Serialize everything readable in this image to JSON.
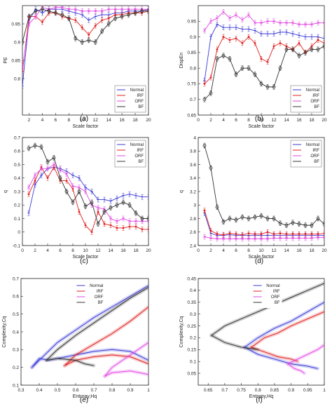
{
  "figure": {
    "panel_labels": [
      "(a)",
      "(b)",
      "(c)",
      "(d)",
      "(e)",
      "(f)"
    ]
  },
  "colors": {
    "Normal": "#3b3bd6",
    "IRF": "#e02020",
    "ORF": "#e24ae2",
    "BF": "#333333"
  },
  "chart_data": [
    {
      "panel": "(a)",
      "type": "line",
      "xlabel": "Scale factor",
      "ylabel": "PE",
      "xlim": [
        1,
        20
      ],
      "ylim": [
        0.7,
        1.0
      ],
      "xticks": [
        2,
        4,
        6,
        8,
        10,
        12,
        14,
        16,
        18,
        20
      ],
      "yticks": [
        0.8,
        0.85,
        0.9,
        0.95
      ],
      "legend": {
        "position": "bottom-right",
        "entries": [
          "Normal",
          "IRF",
          "ORF",
          "BF"
        ]
      },
      "x": [
        1,
        2,
        3,
        4,
        5,
        6,
        7,
        8,
        9,
        10,
        11,
        12,
        13,
        14,
        15,
        16,
        17,
        18,
        19,
        20
      ],
      "series": [
        {
          "name": "Normal",
          "values": [
            0.78,
            0.96,
            0.99,
            0.98,
            0.99,
            0.99,
            0.99,
            0.985,
            0.98,
            0.975,
            0.96,
            0.97,
            0.975,
            0.975,
            0.98,
            0.98,
            0.985,
            0.985,
            0.985,
            0.99
          ]
        },
        {
          "name": "IRF",
          "values": [
            0.82,
            0.97,
            0.97,
            0.955,
            0.98,
            0.98,
            0.97,
            0.965,
            0.96,
            0.94,
            0.92,
            0.945,
            0.96,
            0.965,
            0.975,
            0.975,
            0.98,
            0.98,
            0.98,
            0.985
          ]
        },
        {
          "name": "ORF",
          "values": [
            0.83,
            0.95,
            0.97,
            0.995,
            0.99,
            0.995,
            0.995,
            0.99,
            0.99,
            0.985,
            0.985,
            0.985,
            0.985,
            0.99,
            0.99,
            0.99,
            0.99,
            0.99,
            0.99,
            0.99
          ]
        },
        {
          "name": "BF",
          "values": [
            0.9,
            0.97,
            0.985,
            0.99,
            0.985,
            0.98,
            0.975,
            0.965,
            0.91,
            0.9,
            0.905,
            0.9,
            0.93,
            0.95,
            0.965,
            0.97,
            0.975,
            0.98,
            0.985,
            0.985
          ]
        }
      ]
    },
    {
      "panel": "(b)",
      "type": "line",
      "xlabel": "Scale factor",
      "ylabel": "DispEn",
      "xlim": [
        0,
        20
      ],
      "ylim": [
        0.65,
        1.0
      ],
      "xticks": [
        0,
        2,
        4,
        6,
        8,
        10,
        12,
        14,
        16,
        18,
        20
      ],
      "yticks": [
        0.65,
        0.7,
        0.75,
        0.8,
        0.85,
        0.9,
        0.95
      ],
      "legend": {
        "position": "bottom-right",
        "entries": [
          "Normal",
          "IRF",
          "ORF",
          "BF"
        ]
      },
      "x": [
        1,
        2,
        3,
        4,
        5,
        6,
        7,
        8,
        9,
        10,
        11,
        12,
        13,
        14,
        15,
        16,
        17,
        18,
        19,
        20
      ],
      "series": [
        {
          "name": "Normal",
          "values": [
            0.76,
            0.9,
            0.94,
            0.93,
            0.93,
            0.93,
            0.925,
            0.925,
            0.92,
            0.91,
            0.91,
            0.91,
            0.915,
            0.915,
            0.91,
            0.905,
            0.9,
            0.9,
            0.9,
            0.895
          ]
        },
        {
          "name": "IRF",
          "values": [
            0.75,
            0.77,
            0.86,
            0.9,
            0.89,
            0.895,
            0.88,
            0.9,
            0.88,
            0.83,
            0.82,
            0.87,
            0.88,
            0.87,
            0.86,
            0.88,
            0.85,
            0.87,
            0.89,
            0.88
          ]
        },
        {
          "name": "ORF",
          "values": [
            0.92,
            0.95,
            0.96,
            0.98,
            0.96,
            0.97,
            0.955,
            0.97,
            0.945,
            0.945,
            0.95,
            0.95,
            0.945,
            0.945,
            0.945,
            0.94,
            0.94,
            0.94,
            0.945,
            0.945
          ]
        },
        {
          "name": "BF",
          "values": [
            0.7,
            0.72,
            0.83,
            0.84,
            0.83,
            0.78,
            0.8,
            0.8,
            0.78,
            0.75,
            0.74,
            0.74,
            0.8,
            0.86,
            0.86,
            0.84,
            0.85,
            0.86,
            0.86,
            0.87
          ]
        }
      ]
    },
    {
      "panel": "(c)",
      "type": "line",
      "xlabel": "Scale factor",
      "ylabel": "q",
      "xlim": [
        0,
        20
      ],
      "ylim": [
        -0.1,
        0.7
      ],
      "xticks": [
        0,
        2,
        4,
        6,
        8,
        10,
        12,
        14,
        16,
        18,
        20
      ],
      "yticks": [
        -0.1,
        0,
        0.1,
        0.2,
        0.3,
        0.4,
        0.5,
        0.6,
        0.7
      ],
      "legend": {
        "position": "top-right",
        "entries": [
          "Normal",
          "IRF",
          "ORF",
          "BF"
        ]
      },
      "x": [
        1,
        2,
        3,
        4,
        5,
        6,
        7,
        8,
        9,
        10,
        11,
        12,
        13,
        14,
        15,
        16,
        17,
        18,
        19,
        20
      ],
      "series": [
        {
          "name": "Normal",
          "values": [
            0.14,
            0.35,
            0.42,
            0.47,
            0.48,
            0.47,
            0.45,
            0.42,
            0.4,
            0.33,
            0.3,
            0.24,
            0.24,
            0.23,
            0.25,
            0.27,
            0.28,
            0.27,
            0.26,
            0.26
          ]
        },
        {
          "name": "IRF",
          "values": [
            0.28,
            0.38,
            0.48,
            0.4,
            0.48,
            0.38,
            0.38,
            0.32,
            0.15,
            0.05,
            0.0,
            0.15,
            0.06,
            0.05,
            0.03,
            0.03,
            0.04,
            0.04,
            0.02,
            0.02
          ]
        },
        {
          "name": "ORF",
          "values": [
            0.33,
            0.42,
            0.47,
            0.47,
            0.5,
            0.46,
            0.43,
            0.34,
            0.33,
            0.3,
            0.2,
            0.18,
            0.17,
            0.1,
            0.08,
            0.1,
            0.08,
            0.08,
            0.08,
            0.08
          ]
        },
        {
          "name": "BF",
          "values": [
            0.62,
            0.64,
            0.63,
            0.52,
            0.55,
            0.4,
            0.3,
            0.22,
            0.3,
            0.19,
            0.22,
            0.06,
            0.15,
            0.18,
            0.2,
            0.22,
            0.2,
            0.14,
            0.1,
            0.1
          ]
        }
      ]
    },
    {
      "panel": "(d)",
      "type": "line",
      "xlabel": "Scale factor",
      "ylabel": "q",
      "xlim": [
        0,
        20
      ],
      "ylim": [
        2.4,
        4.0
      ],
      "xticks": [
        0,
        2,
        4,
        6,
        8,
        10,
        12,
        14,
        16,
        18,
        20
      ],
      "yticks": [
        2.4,
        2.6,
        2.8,
        3.0,
        3.2,
        3.4,
        3.6,
        3.8,
        4.0
      ],
      "legend": {
        "position": "top-right",
        "entries": [
          "Normal",
          "IRF",
          "ORF",
          "BF"
        ]
      },
      "x": [
        1,
        2,
        3,
        4,
        5,
        6,
        7,
        8,
        9,
        10,
        11,
        12,
        13,
        14,
        15,
        16,
        17,
        18,
        19,
        20
      ],
      "series": [
        {
          "name": "Normal",
          "values": [
            2.88,
            2.58,
            2.55,
            2.55,
            2.56,
            2.55,
            2.55,
            2.55,
            2.55,
            2.55,
            2.55,
            2.55,
            2.55,
            2.55,
            2.55,
            2.55,
            2.55,
            2.55,
            2.55,
            2.55
          ]
        },
        {
          "name": "IRF",
          "values": [
            2.92,
            2.62,
            2.57,
            2.56,
            2.58,
            2.57,
            2.56,
            2.58,
            2.57,
            2.57,
            2.6,
            2.57,
            2.58,
            2.57,
            2.57,
            2.57,
            2.57,
            2.57,
            2.57,
            2.58
          ]
        },
        {
          "name": "ORF",
          "values": [
            2.53,
            2.51,
            2.5,
            2.5,
            2.5,
            2.5,
            2.5,
            2.5,
            2.5,
            2.5,
            2.5,
            2.51,
            2.51,
            2.51,
            2.51,
            2.51,
            2.51,
            2.51,
            2.52,
            2.52
          ]
        },
        {
          "name": "BF",
          "values": [
            3.88,
            3.55,
            2.97,
            2.75,
            2.8,
            2.78,
            2.82,
            2.8,
            2.82,
            2.84,
            2.8,
            2.8,
            2.73,
            2.7,
            2.74,
            2.72,
            2.7,
            2.7,
            2.8,
            2.72
          ]
        }
      ]
    },
    {
      "panel": "(e)",
      "type": "line",
      "xlabel": "Entropy,Hq",
      "ylabel": "Complexity,Cq",
      "xlim": [
        0.3,
        1.0
      ],
      "ylim": [
        0.1,
        0.7
      ],
      "xticks": [
        0.3,
        0.4,
        0.5,
        0.6,
        0.7,
        0.8,
        0.9,
        1
      ],
      "yticks": [
        0.1,
        0.2,
        0.3,
        0.4,
        0.5,
        0.6,
        0.7
      ],
      "legend": {
        "position": "top-center",
        "entries": [
          "Normal",
          "IRF",
          "ORF",
          "BF"
        ]
      },
      "series": [
        {
          "name": "Normal",
          "upper": {
            "x": [
              0.36,
              0.5,
              0.6,
              0.7,
              0.8,
              0.9,
              1.0
            ],
            "y": [
              0.2,
              0.34,
              0.41,
              0.48,
              0.54,
              0.6,
              0.66
            ]
          },
          "lower": {
            "x": [
              0.36,
              0.4,
              0.45,
              0.5,
              0.6,
              0.7,
              0.8,
              0.9,
              1.0
            ],
            "y": [
              0.2,
              0.25,
              0.24,
              0.25,
              0.27,
              0.29,
              0.3,
              0.29,
              0.24
            ]
          }
        },
        {
          "name": "IRF",
          "upper": {
            "x": [
              0.54,
              0.6,
              0.7,
              0.8,
              0.9,
              1.0
            ],
            "y": [
              0.21,
              0.27,
              0.33,
              0.39,
              0.46,
              0.54
            ]
          },
          "lower": {
            "x": [
              0.54,
              0.6,
              0.7,
              0.8,
              0.9,
              1.0
            ],
            "y": [
              0.21,
              0.24,
              0.26,
              0.27,
              0.26,
              0.22
            ]
          }
        },
        {
          "name": "ORF",
          "upper": {
            "x": [
              0.76,
              0.8,
              0.9,
              1.0
            ],
            "y": [
              0.15,
              0.2,
              0.27,
              0.34
            ]
          },
          "lower": {
            "x": [
              0.76,
              0.8,
              0.9,
              1.0
            ],
            "y": [
              0.15,
              0.17,
              0.18,
              0.16
            ]
          }
        },
        {
          "name": "BF",
          "upper": {
            "x": [
              0.44,
              0.5,
              0.6,
              0.7,
              0.8,
              0.9,
              1.0
            ],
            "y": [
              0.24,
              0.3,
              0.38,
              0.45,
              0.52,
              0.59,
              0.65
            ]
          },
          "lower": {
            "x": [
              0.44,
              0.5,
              0.6,
              0.65,
              0.7
            ],
            "y": [
              0.24,
              0.25,
              0.24,
              0.22,
              0.21
            ]
          }
        }
      ]
    },
    {
      "panel": "(f)",
      "type": "line",
      "xlabel": "Entropy,Hq",
      "ylabel": "Complexity,Cq",
      "xlim": [
        0.62,
        1.0
      ],
      "ylim": [
        0.0,
        0.45
      ],
      "xticks": [
        0.65,
        0.7,
        0.75,
        0.8,
        0.85,
        0.9,
        0.95,
        1
      ],
      "yticks": [
        0.05,
        0.1,
        0.15,
        0.2,
        0.25,
        0.3,
        0.35,
        0.4,
        0.45
      ],
      "legend": {
        "position": "top-center",
        "entries": [
          "Normal",
          "IRF",
          "ORF",
          "BF"
        ]
      },
      "series": [
        {
          "name": "Normal",
          "upper": {
            "x": [
              0.76,
              0.8,
              0.85,
              0.9,
              0.95,
              1.0
            ],
            "y": [
              0.16,
              0.2,
              0.24,
              0.27,
              0.31,
              0.35
            ]
          },
          "lower": {
            "x": [
              0.76,
              0.8,
              0.85,
              0.9,
              0.95,
              0.98
            ],
            "y": [
              0.16,
              0.13,
              0.11,
              0.09,
              0.08,
              0.07
            ]
          }
        },
        {
          "name": "IRF",
          "upper": {
            "x": [
              0.78,
              0.82,
              0.86,
              0.9,
              0.95,
              1.0
            ],
            "y": [
              0.16,
              0.2,
              0.22,
              0.25,
              0.28,
              0.31
            ]
          },
          "lower": {
            "x": [
              0.78,
              0.82,
              0.86,
              0.9,
              0.92
            ],
            "y": [
              0.16,
              0.14,
              0.12,
              0.11,
              0.1
            ]
          }
        },
        {
          "name": "ORF",
          "upper": {
            "x": [
              0.89,
              0.92,
              0.95,
              0.98,
              1.0
            ],
            "y": [
              0.09,
              0.11,
              0.13,
              0.15,
              0.17
            ]
          },
          "lower": {
            "x": [
              0.89,
              0.91,
              0.93,
              0.94
            ],
            "y": [
              0.09,
              0.07,
              0.06,
              0.05
            ]
          }
        },
        {
          "name": "BF",
          "upper": {
            "x": [
              0.66,
              0.7,
              0.75,
              0.8,
              0.85,
              0.9,
              0.95,
              1.0
            ],
            "y": [
              0.21,
              0.25,
              0.28,
              0.31,
              0.34,
              0.37,
              0.4,
              0.43
            ]
          },
          "lower": {
            "x": [
              0.66,
              0.7,
              0.75,
              0.8
            ],
            "y": [
              0.21,
              0.18,
              0.16,
              0.15
            ]
          }
        }
      ]
    }
  ]
}
